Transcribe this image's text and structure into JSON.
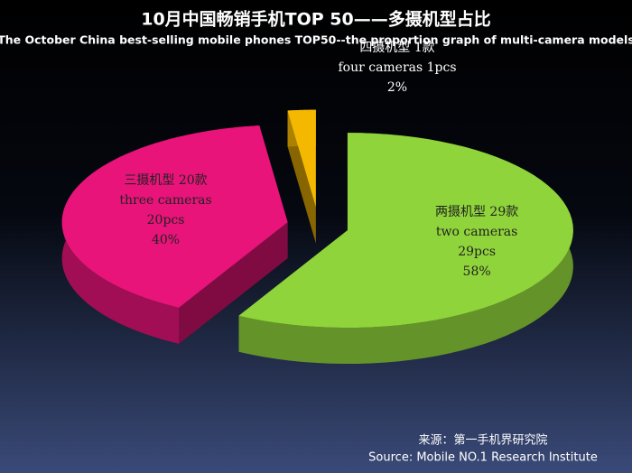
{
  "chart_data": {
    "type": "pie",
    "title": "10月中国畅销手机TOP 50——多摄机型占比",
    "subtitle": "The October China best-selling mobile phones TOP50--the proportion graph of multi-camera models",
    "categories": [
      "两摄机型 29款",
      "三摄机型 20款",
      "四摄机型 1款"
    ],
    "label_lines": [
      [
        "two cameras",
        "29pcs"
      ],
      [
        "three cameras",
        "20pcs"
      ],
      [
        "four cameras  1pcs"
      ]
    ],
    "values": [
      58,
      40,
      2
    ],
    "value_labels": [
      "58%",
      "40%",
      "2%"
    ],
    "colors": [
      "#8fd43a",
      "#e8147a",
      "#f5b800"
    ],
    "source": [
      "来源：第一手机界研究院",
      "Source: Mobile NO.1 Research Institute"
    ]
  }
}
